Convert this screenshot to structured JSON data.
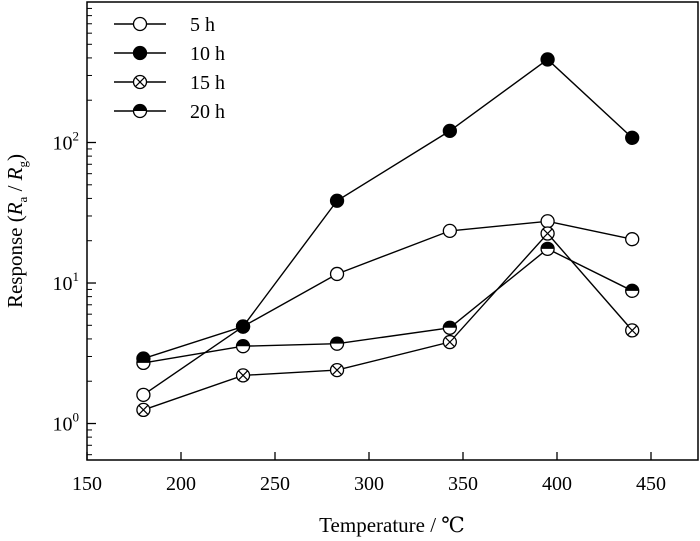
{
  "chart_data": {
    "type": "line",
    "xlabel": "Temperature / ℃",
    "ylabel": {
      "prefix": "Response (",
      "r1": "R",
      "r1_sub": "a",
      "sep": " / ",
      "r2": "R",
      "r2_sub": "g",
      "suffix": ")"
    },
    "xlim": [
      150,
      475
    ],
    "ylim": [
      0.55,
      1000
    ],
    "yscale": "log",
    "x_ticks": [
      150,
      200,
      250,
      300,
      350,
      400,
      450
    ],
    "x_tick_labels": [
      "150",
      "200",
      "250",
      "300",
      "350",
      "400",
      "450"
    ],
    "y_ticks": [
      {
        "value": 1,
        "base": "10",
        "exp": "0"
      },
      {
        "value": 10,
        "base": "10",
        "exp": "1"
      },
      {
        "value": 100,
        "base": "10",
        "exp": "2"
      }
    ],
    "legend_position": "top-left",
    "x": [
      180,
      233,
      283,
      343,
      395,
      440
    ],
    "series": [
      {
        "name": "5 h",
        "marker": "open-circle",
        "values": [
          1.6,
          4.9,
          11.6,
          23.5,
          27.5,
          20.5
        ]
      },
      {
        "name": "10 h",
        "marker": "filled-circle",
        "values": [
          2.9,
          4.9,
          38.5,
          121,
          390,
          108
        ]
      },
      {
        "name": "15 h",
        "marker": "crossed-circle",
        "values": [
          1.25,
          2.2,
          2.4,
          3.8,
          22.5,
          4.6
        ]
      },
      {
        "name": "20 h",
        "marker": "half-filled-circle",
        "values": [
          2.7,
          3.55,
          3.7,
          4.8,
          17.5,
          8.8
        ]
      }
    ]
  }
}
